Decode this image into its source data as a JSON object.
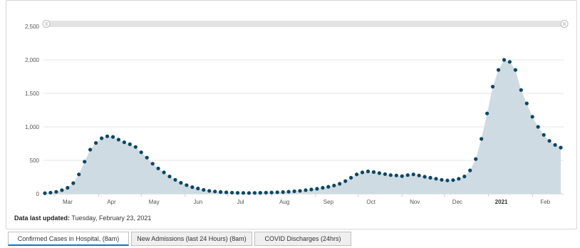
{
  "chart_data": {
    "type": "scatter",
    "title": "",
    "xlabel": "",
    "ylabel": "",
    "y_ticks": [
      "0",
      "500",
      "1,000",
      "1,500",
      "2,000",
      "2,500"
    ],
    "ylim": [
      0,
      2500
    ],
    "x_ticks": [
      {
        "label": "Mar",
        "date": "2020-03-01",
        "bold": false
      },
      {
        "label": "Apr",
        "date": "2020-04-01",
        "bold": false
      },
      {
        "label": "May",
        "date": "2020-05-01",
        "bold": false
      },
      {
        "label": "Jun",
        "date": "2020-06-01",
        "bold": false
      },
      {
        "label": "Jul",
        "date": "2020-07-01",
        "bold": false
      },
      {
        "label": "Aug",
        "date": "2020-08-01",
        "bold": false
      },
      {
        "label": "Sep",
        "date": "2020-09-01",
        "bold": false
      },
      {
        "label": "Oct",
        "date": "2020-10-01",
        "bold": false
      },
      {
        "label": "Nov",
        "date": "2020-11-01",
        "bold": false
      },
      {
        "label": "Dec",
        "date": "2020-12-01",
        "bold": false
      },
      {
        "label": "2021",
        "date": "2021-01-01",
        "bold": true
      },
      {
        "label": "Feb",
        "date": "2021-02-01",
        "bold": false
      }
    ],
    "xlim": [
      "2020-02-22",
      "2021-02-23"
    ],
    "grid": true,
    "point_color": "#0e4763",
    "area_color": "#cfdbe3",
    "series": [
      {
        "points": [
          [
            "2020-02-23",
            10
          ],
          [
            "2020-02-27",
            18
          ],
          [
            "2020-03-02",
            30
          ],
          [
            "2020-03-06",
            55
          ],
          [
            "2020-03-10",
            90
          ],
          [
            "2020-03-14",
            160
          ],
          [
            "2020-03-18",
            290
          ],
          [
            "2020-03-22",
            480
          ],
          [
            "2020-03-26",
            660
          ],
          [
            "2020-03-30",
            760
          ],
          [
            "2020-04-03",
            830
          ],
          [
            "2020-04-07",
            860
          ],
          [
            "2020-04-11",
            850
          ],
          [
            "2020-04-15",
            810
          ],
          [
            "2020-04-19",
            770
          ],
          [
            "2020-04-23",
            740
          ],
          [
            "2020-04-27",
            700
          ],
          [
            "2020-05-01",
            620
          ],
          [
            "2020-05-05",
            540
          ],
          [
            "2020-05-09",
            450
          ],
          [
            "2020-05-13",
            380
          ],
          [
            "2020-05-17",
            320
          ],
          [
            "2020-05-21",
            260
          ],
          [
            "2020-05-25",
            210
          ],
          [
            "2020-05-29",
            165
          ],
          [
            "2020-06-02",
            130
          ],
          [
            "2020-06-06",
            100
          ],
          [
            "2020-06-10",
            80
          ],
          [
            "2020-06-14",
            60
          ],
          [
            "2020-06-18",
            45
          ],
          [
            "2020-06-22",
            35
          ],
          [
            "2020-06-26",
            28
          ],
          [
            "2020-06-30",
            22
          ],
          [
            "2020-07-04",
            18
          ],
          [
            "2020-07-08",
            15
          ],
          [
            "2020-07-12",
            14
          ],
          [
            "2020-07-16",
            13
          ],
          [
            "2020-07-20",
            14
          ],
          [
            "2020-07-24",
            16
          ],
          [
            "2020-07-28",
            18
          ],
          [
            "2020-08-01",
            20
          ],
          [
            "2020-08-05",
            23
          ],
          [
            "2020-08-09",
            27
          ],
          [
            "2020-08-13",
            32
          ],
          [
            "2020-08-17",
            38
          ],
          [
            "2020-08-21",
            45
          ],
          [
            "2020-08-25",
            55
          ],
          [
            "2020-08-29",
            65
          ],
          [
            "2020-09-02",
            75
          ],
          [
            "2020-09-06",
            90
          ],
          [
            "2020-09-10",
            105
          ],
          [
            "2020-09-14",
            125
          ],
          [
            "2020-09-18",
            150
          ],
          [
            "2020-09-22",
            190
          ],
          [
            "2020-09-26",
            240
          ],
          [
            "2020-09-30",
            290
          ],
          [
            "2020-10-04",
            320
          ],
          [
            "2020-10-08",
            335
          ],
          [
            "2020-10-12",
            325
          ],
          [
            "2020-10-16",
            310
          ],
          [
            "2020-10-20",
            295
          ],
          [
            "2020-10-24",
            280
          ],
          [
            "2020-10-28",
            275
          ],
          [
            "2020-11-01",
            265
          ],
          [
            "2020-11-05",
            280
          ],
          [
            "2020-11-09",
            290
          ],
          [
            "2020-11-13",
            275
          ],
          [
            "2020-11-17",
            255
          ],
          [
            "2020-11-21",
            240
          ],
          [
            "2020-11-25",
            225
          ],
          [
            "2020-11-29",
            210
          ],
          [
            "2020-12-03",
            200
          ],
          [
            "2020-12-07",
            205
          ],
          [
            "2020-12-11",
            225
          ],
          [
            "2020-12-15",
            260
          ],
          [
            "2020-12-19",
            350
          ],
          [
            "2020-12-23",
            520
          ],
          [
            "2020-12-27",
            820
          ],
          [
            "2020-12-31",
            1200
          ],
          [
            "2021-01-04",
            1600
          ],
          [
            "2021-01-08",
            1850
          ],
          [
            "2021-01-12",
            2000
          ],
          [
            "2021-01-16",
            1970
          ],
          [
            "2021-01-20",
            1850
          ],
          [
            "2021-01-24",
            1550
          ],
          [
            "2021-01-28",
            1350
          ],
          [
            "2021-02-01",
            1150
          ],
          [
            "2021-02-05",
            1000
          ],
          [
            "2021-02-09",
            880
          ],
          [
            "2021-02-13",
            790
          ],
          [
            "2021-02-17",
            730
          ],
          [
            "2021-02-21",
            690
          ]
        ]
      }
    ]
  },
  "footer": {
    "updated_label": "Data last updated:",
    "updated_value": " Tuesday, February 23, 2021"
  },
  "tabs": [
    {
      "label": "Confirmed Cases in Hospital, (8am)",
      "active": true
    },
    {
      "label": "New Admissions (last 24 Hours) (8am)",
      "active": false
    },
    {
      "label": "COVID Discharges (24hrs)",
      "active": false
    }
  ]
}
